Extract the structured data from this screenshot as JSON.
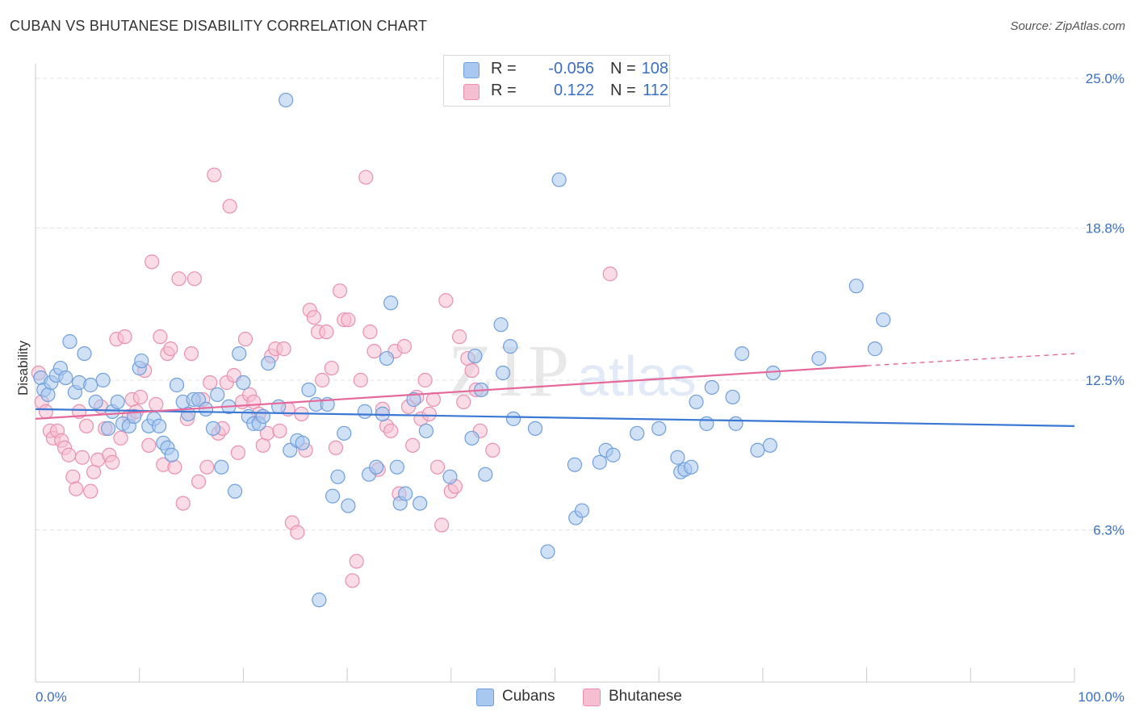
{
  "header": {
    "title": "CUBAN VS BHUTANESE DISABILITY CORRELATION CHART",
    "source": "Source: ZipAtlas.com"
  },
  "legend": {
    "r_label": "R =",
    "n_label": "N =",
    "series": [
      {
        "r": "-0.056",
        "n": "108"
      },
      {
        "r": "0.122",
        "n": "112"
      }
    ]
  },
  "bottom_legend": {
    "items": [
      "Cubans",
      "Bhutanese"
    ]
  },
  "watermark": {
    "zip": "ZIP",
    "atlas": "atlas"
  },
  "colors": {
    "cubans_fill": "#a9c8ef",
    "cubans_stroke": "#6f9fdc",
    "cubans_line": "#3a78d4",
    "bhutanese_fill": "#f6bfd1",
    "bhutanese_stroke": "#ea8fb0",
    "bhutanese_line": "#e5699a",
    "tick_label": "#3a6fc4",
    "grid": "#e3e3e3"
  },
  "chart_data": {
    "type": "scatter",
    "title": "CUBAN VS BHUTANESE DISABILITY CORRELATION CHART",
    "xlabel": "",
    "ylabel": "Disability",
    "xlim": [
      0,
      100
    ],
    "ylim": [
      0,
      25.6
    ],
    "x_tick_labels": [
      {
        "value": 0,
        "label": "0.0%"
      },
      {
        "value": 100,
        "label": "100.0%"
      }
    ],
    "y_ticks": [
      {
        "value": 6.3,
        "label": "6.3%"
      },
      {
        "value": 12.5,
        "label": "12.5%"
      },
      {
        "value": 18.8,
        "label": "18.8%"
      },
      {
        "value": 25.0,
        "label": "25.0%"
      }
    ],
    "grid": true,
    "legend_position": "top-center",
    "series": [
      {
        "name": "Cubans",
        "trend": {
          "x0": 0,
          "y0": 11.3,
          "x1": 100,
          "y1": 10.6
        },
        "points": [
          [
            0.5,
            12.6
          ],
          [
            0.8,
            12.1
          ],
          [
            1.2,
            11.9
          ],
          [
            1.5,
            12.4
          ],
          [
            2.0,
            12.7
          ],
          [
            2.4,
            13.0
          ],
          [
            2.9,
            12.6
          ],
          [
            3.3,
            14.1
          ],
          [
            3.8,
            12.0
          ],
          [
            4.2,
            12.4
          ],
          [
            4.7,
            13.6
          ],
          [
            5.3,
            12.3
          ],
          [
            5.8,
            11.6
          ],
          [
            6.5,
            12.5
          ],
          [
            7.0,
            10.5
          ],
          [
            7.4,
            11.2
          ],
          [
            7.9,
            11.6
          ],
          [
            8.4,
            10.7
          ],
          [
            9.0,
            10.6
          ],
          [
            9.5,
            11.0
          ],
          [
            10.0,
            13.0
          ],
          [
            10.2,
            13.3
          ],
          [
            10.9,
            10.6
          ],
          [
            11.4,
            10.9
          ],
          [
            11.9,
            10.6
          ],
          [
            12.3,
            9.9
          ],
          [
            12.7,
            9.7
          ],
          [
            13.1,
            9.4
          ],
          [
            13.6,
            12.3
          ],
          [
            14.2,
            11.6
          ],
          [
            14.7,
            11.1
          ],
          [
            15.2,
            11.7
          ],
          [
            15.7,
            11.7
          ],
          [
            16.4,
            11.3
          ],
          [
            17.1,
            10.5
          ],
          [
            17.5,
            11.9
          ],
          [
            17.9,
            8.9
          ],
          [
            18.6,
            11.4
          ],
          [
            19.2,
            7.9
          ],
          [
            19.6,
            13.6
          ],
          [
            20.0,
            12.4
          ],
          [
            20.5,
            11.0
          ],
          [
            21.0,
            10.7
          ],
          [
            21.5,
            10.7
          ],
          [
            21.9,
            11.0
          ],
          [
            22.4,
            13.2
          ],
          [
            23.4,
            11.4
          ],
          [
            24.1,
            24.1
          ],
          [
            24.5,
            9.6
          ],
          [
            25.2,
            10.0
          ],
          [
            25.7,
            9.9
          ],
          [
            26.3,
            12.1
          ],
          [
            27.0,
            11.5
          ],
          [
            27.3,
            3.4
          ],
          [
            28.1,
            11.5
          ],
          [
            29.1,
            8.5
          ],
          [
            28.6,
            7.7
          ],
          [
            29.7,
            10.3
          ],
          [
            30.1,
            7.3
          ],
          [
            31.7,
            11.2
          ],
          [
            32.1,
            8.6
          ],
          [
            32.8,
            8.9
          ],
          [
            33.4,
            11.1
          ],
          [
            33.8,
            13.4
          ],
          [
            34.2,
            15.7
          ],
          [
            34.8,
            8.9
          ],
          [
            35.1,
            7.4
          ],
          [
            35.6,
            7.8
          ],
          [
            36.4,
            11.7
          ],
          [
            37.0,
            7.4
          ],
          [
            37.6,
            10.4
          ],
          [
            39.9,
            8.5
          ],
          [
            42.0,
            10.1
          ],
          [
            42.3,
            13.5
          ],
          [
            43.3,
            8.6
          ],
          [
            42.9,
            12.1
          ],
          [
            44.8,
            14.8
          ],
          [
            45.0,
            12.8
          ],
          [
            45.7,
            13.9
          ],
          [
            46.0,
            10.9
          ],
          [
            48.1,
            10.5
          ],
          [
            49.3,
            5.4
          ],
          [
            50.4,
            20.8
          ],
          [
            51.9,
            9.0
          ],
          [
            52.0,
            6.8
          ],
          [
            52.6,
            7.1
          ],
          [
            54.3,
            9.1
          ],
          [
            54.9,
            9.6
          ],
          [
            55.6,
            9.4
          ],
          [
            57.9,
            10.3
          ],
          [
            60.0,
            10.5
          ],
          [
            61.8,
            9.3
          ],
          [
            62.1,
            8.7
          ],
          [
            62.5,
            8.8
          ],
          [
            63.1,
            8.9
          ],
          [
            63.6,
            11.6
          ],
          [
            64.6,
            10.7
          ],
          [
            65.1,
            12.2
          ],
          [
            67.1,
            11.8
          ],
          [
            67.4,
            10.7
          ],
          [
            68.0,
            13.6
          ],
          [
            69.5,
            9.6
          ],
          [
            70.7,
            9.8
          ],
          [
            71.0,
            12.8
          ],
          [
            75.4,
            13.4
          ],
          [
            79.0,
            16.4
          ],
          [
            80.8,
            13.8
          ],
          [
            81.6,
            15.0
          ]
        ]
      },
      {
        "name": "Bhutanese",
        "trend": {
          "x0": 0,
          "y0": 10.9,
          "x1": 80,
          "y1": 13.1,
          "dashed_to_x1": 100,
          "dashed_to_y1": 13.6
        },
        "points": [
          [
            0.3,
            12.8
          ],
          [
            0.6,
            11.6
          ],
          [
            1.0,
            11.2
          ],
          [
            1.4,
            10.4
          ],
          [
            1.7,
            10.1
          ],
          [
            2.1,
            10.4
          ],
          [
            2.5,
            10.0
          ],
          [
            2.8,
            9.7
          ],
          [
            3.2,
            9.4
          ],
          [
            3.6,
            8.5
          ],
          [
            3.9,
            8.0
          ],
          [
            4.2,
            11.2
          ],
          [
            4.5,
            9.3
          ],
          [
            4.9,
            10.6
          ],
          [
            5.3,
            7.9
          ],
          [
            5.6,
            8.7
          ],
          [
            6.0,
            9.2
          ],
          [
            6.3,
            11.4
          ],
          [
            6.7,
            10.5
          ],
          [
            7.1,
            9.4
          ],
          [
            7.4,
            9.1
          ],
          [
            7.8,
            14.2
          ],
          [
            8.2,
            10.1
          ],
          [
            8.6,
            14.3
          ],
          [
            9.0,
            11.0
          ],
          [
            9.3,
            11.7
          ],
          [
            9.7,
            11.2
          ],
          [
            10.1,
            11.8
          ],
          [
            10.5,
            12.9
          ],
          [
            10.9,
            9.8
          ],
          [
            11.2,
            17.4
          ],
          [
            11.6,
            11.5
          ],
          [
            12.0,
            14.3
          ],
          [
            12.3,
            9.0
          ],
          [
            12.7,
            13.6
          ],
          [
            13.0,
            13.8
          ],
          [
            13.4,
            8.9
          ],
          [
            13.8,
            16.7
          ],
          [
            14.2,
            7.4
          ],
          [
            14.6,
            10.9
          ],
          [
            15.0,
            13.6
          ],
          [
            15.3,
            16.7
          ],
          [
            15.7,
            8.3
          ],
          [
            16.1,
            11.7
          ],
          [
            16.5,
            8.9
          ],
          [
            16.8,
            12.4
          ],
          [
            17.2,
            21.0
          ],
          [
            17.6,
            10.3
          ],
          [
            18.0,
            10.5
          ],
          [
            18.4,
            12.4
          ],
          [
            18.7,
            19.7
          ],
          [
            19.1,
            12.7
          ],
          [
            19.5,
            9.5
          ],
          [
            19.9,
            11.6
          ],
          [
            20.2,
            14.2
          ],
          [
            20.6,
            11.9
          ],
          [
            21.0,
            11.6
          ],
          [
            21.5,
            11.1
          ],
          [
            21.9,
            9.8
          ],
          [
            22.3,
            10.3
          ],
          [
            22.7,
            13.5
          ],
          [
            23.1,
            13.8
          ],
          [
            23.5,
            10.4
          ],
          [
            23.9,
            13.8
          ],
          [
            24.3,
            11.3
          ],
          [
            24.7,
            6.6
          ],
          [
            25.2,
            6.2
          ],
          [
            25.6,
            11.1
          ],
          [
            26.0,
            9.6
          ],
          [
            26.4,
            15.4
          ],
          [
            26.8,
            15.1
          ],
          [
            27.2,
            14.5
          ],
          [
            27.6,
            12.5
          ],
          [
            28.0,
            14.5
          ],
          [
            28.5,
            13.0
          ],
          [
            28.9,
            9.7
          ],
          [
            29.3,
            16.2
          ],
          [
            29.7,
            15.0
          ],
          [
            30.1,
            15.0
          ],
          [
            30.5,
            4.2
          ],
          [
            30.9,
            5.0
          ],
          [
            31.3,
            12.5
          ],
          [
            31.8,
            20.9
          ],
          [
            32.2,
            14.5
          ],
          [
            32.6,
            13.7
          ],
          [
            33.0,
            8.8
          ],
          [
            33.4,
            11.3
          ],
          [
            33.8,
            10.6
          ],
          [
            34.2,
            10.4
          ],
          [
            34.6,
            13.7
          ],
          [
            35.0,
            7.8
          ],
          [
            35.5,
            13.9
          ],
          [
            35.9,
            11.4
          ],
          [
            36.3,
            9.8
          ],
          [
            36.7,
            11.8
          ],
          [
            37.1,
            10.9
          ],
          [
            37.5,
            12.5
          ],
          [
            37.9,
            11.1
          ],
          [
            38.3,
            11.7
          ],
          [
            38.7,
            8.9
          ],
          [
            39.1,
            6.5
          ],
          [
            39.5,
            15.8
          ],
          [
            40.0,
            7.9
          ],
          [
            40.4,
            8.1
          ],
          [
            40.8,
            14.3
          ],
          [
            41.2,
            11.6
          ],
          [
            41.6,
            13.4
          ],
          [
            42.0,
            12.9
          ],
          [
            42.4,
            12.1
          ],
          [
            42.8,
            10.4
          ],
          [
            44.0,
            9.6
          ],
          [
            55.3,
            16.9
          ]
        ]
      }
    ]
  }
}
